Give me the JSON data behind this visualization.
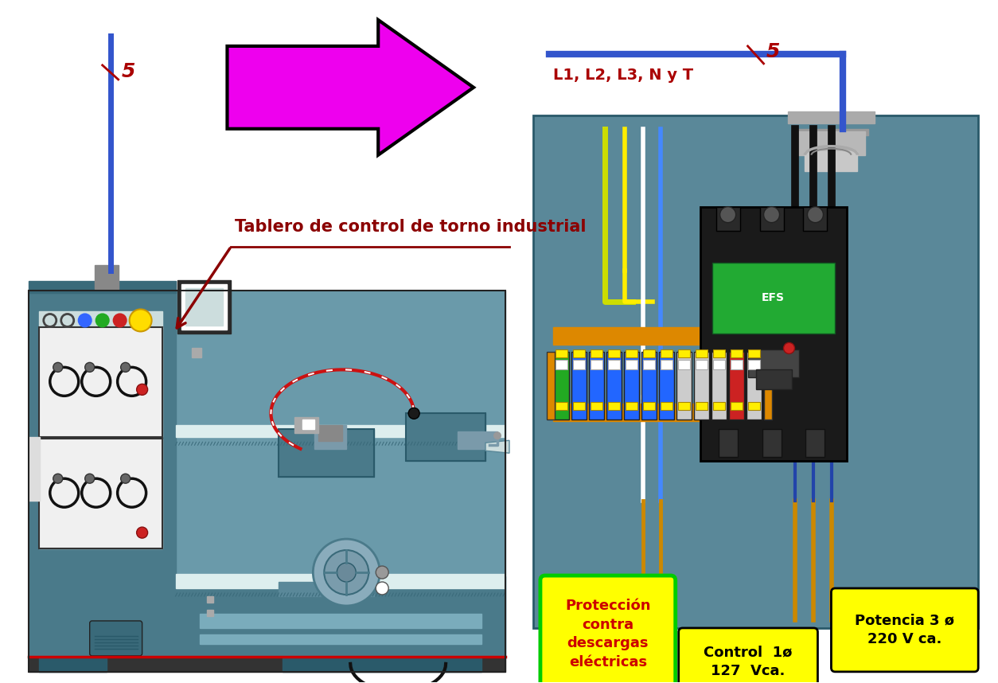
{
  "bg_color": "#ffffff",
  "arrow_color": "#ee00ee",
  "arrow_border": "#000000",
  "text_label_color": "#aa0000",
  "tablero_text": "Tablero de control de torno industrial",
  "tablero_color": "#8b0000",
  "l1l2_text": "L1, L2, L3, N y T",
  "box1_text": "Protección\ncontra\ndescargas\neléctricas",
  "box1_bg": "#ffff00",
  "box1_border": "#00cc00",
  "box1_text_color": "#cc0000",
  "box2_text": "Control  1ø\n127  Vca.",
  "box2_bg": "#ffff00",
  "box2_border": "#000000",
  "box2_text_color": "#000000",
  "box3_text": "Potencia 3 ø\n220 V ca.",
  "box3_bg": "#ffff00",
  "box3_border": "#000000",
  "box3_text_color": "#000000",
  "torno_color": "#6a9aaa",
  "torno_dark": "#4a7a8a",
  "torno_light": "#7aaabb",
  "panel_white": "#f0f0f0",
  "cabinet_color": "#5a8899"
}
